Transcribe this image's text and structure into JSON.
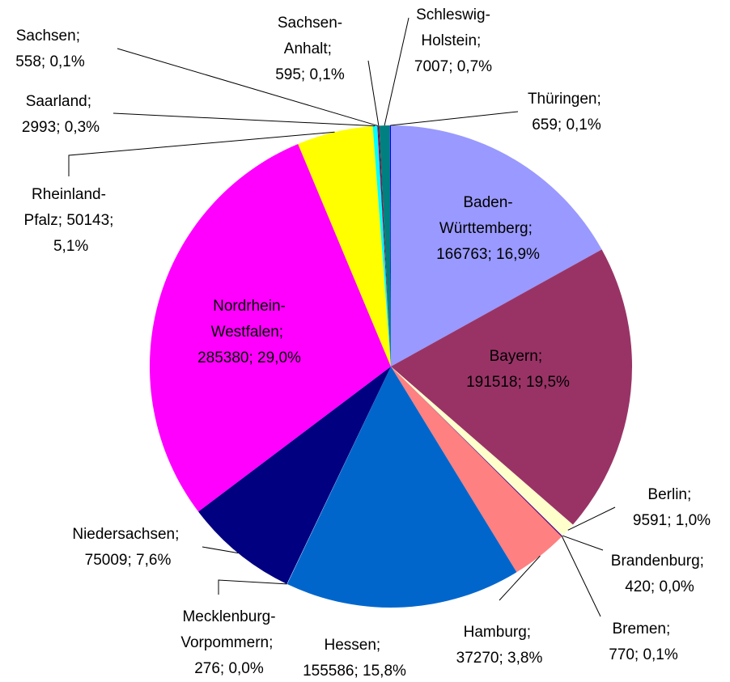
{
  "chart_data": {
    "type": "pie",
    "categories": [
      "Baden-Württemberg",
      "Bayern",
      "Berlin",
      "Brandenburg",
      "Bremen",
      "Hamburg",
      "Hessen",
      "Mecklenburg-Vorpommern",
      "Niedersachsen",
      "Nordrhein-Westfalen",
      "Rheinland-Pfalz",
      "Saarland",
      "Sachsen",
      "Sachsen-Anhalt",
      "Schleswig-Holstein",
      "Thüringen"
    ],
    "values": [
      166763,
      191518,
      9591,
      420,
      770,
      37270,
      155586,
      276,
      75009,
      285380,
      50143,
      2993,
      558,
      595,
      7007,
      659
    ],
    "value_labels": [
      "166763; 16,9%",
      "191518; 19,5%",
      "9591; 1,0%",
      "420; 0,0%",
      "770; 0,1%",
      "37270; 3,8%",
      "155586; 15,8%",
      "276; 0,0%",
      "75009; 7,6%",
      "285380; 29,0%",
      "50143; 5,1%",
      "2993; 0,3%",
      "558; 0,1%",
      "595; 0,1%",
      "7007; 0,7%",
      "659; 0,1%"
    ],
    "label_separator": "; ",
    "colors": [
      "#9999ff",
      "#993366",
      "#ffffcc",
      "#ccffff",
      "#660066",
      "#ff8080",
      "#0066cc",
      "#ccccff",
      "#000080",
      "#ff00ff",
      "#ffff00",
      "#00ffff",
      "#800080",
      "#800000",
      "#008080",
      "#0000ff"
    ]
  }
}
